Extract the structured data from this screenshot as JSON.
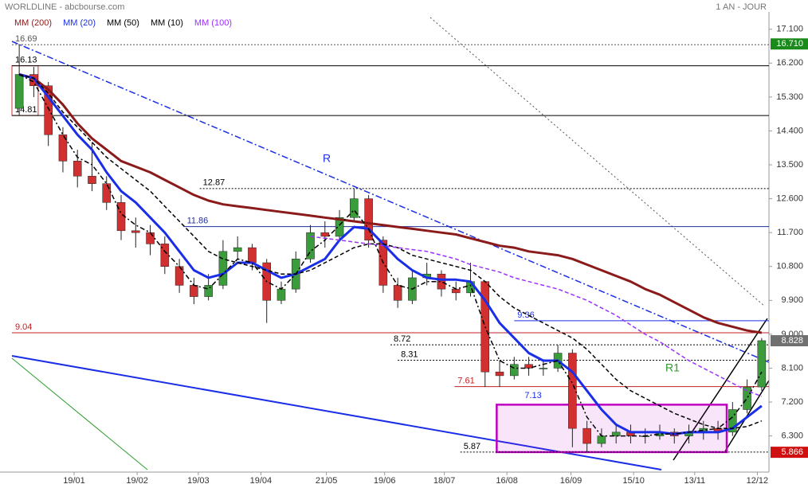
{
  "chart_data": {
    "type": "candlestick",
    "title": "WORLDLINE - abcbourse.com",
    "period": "1 AN - JOUR",
    "up_color": "#3a9c3a",
    "down_color": "#d03030",
    "x": [
      0.5,
      1.5,
      2.5,
      3.5,
      4.5,
      5.5,
      6.5,
      7.5,
      8.5,
      9.5,
      10.5,
      11.5,
      12.5,
      13.5,
      14.5,
      15.5,
      16.5,
      17.5,
      18.5,
      19.5,
      20.5,
      21.5,
      22.5,
      23.5,
      24.5,
      25.5,
      26.5,
      27.5,
      28.5,
      29.5,
      30.5,
      31.5,
      32.5,
      33.5,
      34.5,
      35.5,
      36.5,
      37.5,
      38.5,
      39.5,
      40.5,
      41.5,
      42.5,
      43.5,
      44.5,
      45.5,
      46.5,
      47.5,
      48.5,
      49.5,
      50.5,
      51.5
    ],
    "open": [
      15.0,
      15.9,
      15.6,
      14.3,
      13.6,
      13.2,
      13.0,
      12.5,
      11.75,
      11.7,
      11.4,
      10.8,
      10.3,
      10.0,
      10.3,
      11.2,
      11.3,
      10.9,
      9.9,
      10.2,
      11.0,
      11.7,
      11.6,
      12.1,
      12.6,
      11.5,
      10.3,
      9.9,
      10.5,
      10.6,
      10.2,
      10.1,
      10.4,
      8.0,
      7.9,
      8.2,
      8.1,
      8.1,
      8.5,
      6.5,
      6.1,
      6.3,
      6.4,
      6.3,
      6.3,
      6.4,
      6.3,
      6.4,
      6.5,
      6.4,
      7.0,
      7.6
    ],
    "high": [
      16.69,
      16.1,
      15.7,
      14.5,
      13.9,
      14.1,
      13.2,
      12.7,
      12.1,
      11.9,
      11.6,
      11.0,
      10.5,
      10.6,
      11.5,
      11.6,
      11.4,
      11.0,
      10.4,
      11.2,
      11.9,
      12.0,
      12.3,
      12.87,
      12.7,
      11.6,
      10.5,
      10.7,
      10.9,
      10.7,
      10.4,
      10.9,
      10.4,
      8.3,
      8.4,
      8.4,
      8.3,
      8.72,
      8.6,
      6.7,
      6.5,
      6.6,
      6.6,
      6.5,
      6.6,
      6.5,
      6.6,
      6.7,
      6.7,
      7.2,
      7.8,
      8.9
    ],
    "low": [
      14.81,
      15.3,
      14.0,
      13.3,
      12.9,
      12.8,
      12.3,
      11.5,
      11.3,
      11.1,
      10.6,
      10.1,
      9.8,
      9.9,
      10.2,
      11.0,
      10.7,
      9.3,
      9.8,
      10.1,
      10.9,
      11.3,
      11.5,
      12.0,
      11.3,
      10.1,
      9.7,
      9.8,
      10.3,
      10.0,
      9.9,
      10.0,
      7.6,
      7.6,
      7.8,
      7.9,
      7.9,
      8.0,
      6.0,
      5.87,
      6.0,
      6.1,
      6.1,
      6.1,
      6.2,
      6.1,
      6.1,
      6.2,
      6.2,
      6.3,
      6.9,
      7.5
    ],
    "close": [
      15.9,
      15.6,
      14.3,
      13.6,
      13.2,
      13.0,
      12.5,
      11.75,
      11.7,
      11.4,
      10.8,
      10.3,
      10.0,
      10.3,
      11.2,
      11.3,
      10.9,
      9.9,
      10.2,
      11.0,
      11.7,
      11.6,
      12.1,
      12.6,
      11.5,
      10.3,
      9.9,
      10.5,
      10.6,
      10.2,
      10.1,
      10.4,
      8.0,
      7.9,
      8.2,
      8.1,
      8.1,
      8.5,
      6.5,
      6.1,
      6.3,
      6.4,
      6.3,
      6.3,
      6.4,
      6.3,
      6.4,
      6.5,
      6.4,
      7.0,
      7.6,
      8.83
    ],
    "series": [
      {
        "name": "MM (200)",
        "color": "#8b1a1a",
        "style": "solid",
        "bold": true,
        "values": [
          15.9,
          15.8,
          15.5,
          15.1,
          14.6,
          14.2,
          13.9,
          13.6,
          13.45,
          13.3,
          13.1,
          12.9,
          12.7,
          12.55,
          12.45,
          12.4,
          12.35,
          12.3,
          12.25,
          12.2,
          12.15,
          12.1,
          12.05,
          12.0,
          11.95,
          11.9,
          11.85,
          11.8,
          11.75,
          11.7,
          11.65,
          11.55,
          11.45,
          11.35,
          11.3,
          11.2,
          11.15,
          11.1,
          11.0,
          10.85,
          10.7,
          10.55,
          10.4,
          10.2,
          10.05,
          9.85,
          9.65,
          9.45,
          9.3,
          9.2,
          9.1,
          9.04
        ]
      },
      {
        "name": "MM (20)",
        "color": "#1a2ee8",
        "style": "solid",
        "bold": true,
        "values": [
          15.9,
          15.8,
          15.3,
          14.8,
          14.3,
          13.9,
          13.3,
          12.8,
          12.5,
          12.1,
          11.7,
          11.2,
          10.7,
          10.5,
          10.6,
          10.9,
          10.9,
          10.7,
          10.5,
          10.6,
          10.8,
          11.0,
          11.5,
          11.85,
          11.8,
          11.4,
          11.0,
          10.7,
          10.5,
          10.45,
          10.45,
          10.4,
          9.9,
          9.3,
          8.9,
          8.5,
          8.3,
          8.3,
          8.0,
          7.5,
          7.0,
          6.6,
          6.4,
          6.4,
          6.4,
          6.35,
          6.4,
          6.4,
          6.4,
          6.5,
          6.8,
          7.1
        ]
      },
      {
        "name": "MM (50)",
        "color": "#000000",
        "style": "dashed",
        "bold": false,
        "values": [
          15.9,
          15.8,
          15.4,
          14.9,
          14.5,
          14.1,
          13.7,
          13.4,
          13.1,
          12.8,
          12.4,
          12.0,
          11.6,
          11.2,
          11.0,
          10.9,
          10.8,
          10.7,
          10.6,
          10.6,
          10.7,
          10.9,
          11.1,
          11.3,
          11.4,
          11.4,
          11.3,
          11.1,
          11.0,
          10.9,
          10.8,
          10.7,
          10.4,
          10.0,
          9.7,
          9.5,
          9.3,
          9.1,
          8.9,
          8.6,
          8.2,
          7.8,
          7.5,
          7.3,
          7.1,
          6.9,
          6.75,
          6.6,
          6.5,
          6.5,
          6.55,
          6.7
        ]
      },
      {
        "name": "MM (10)",
        "color": "#000000",
        "style": "dashdot",
        "bold": false,
        "values": [
          15.9,
          15.7,
          15.0,
          14.3,
          13.7,
          13.5,
          13.0,
          12.2,
          11.9,
          11.7,
          11.2,
          10.8,
          10.3,
          10.2,
          10.6,
          11.0,
          10.9,
          10.4,
          10.2,
          10.6,
          11.2,
          11.5,
          11.9,
          12.3,
          11.8,
          10.9,
          10.3,
          10.2,
          10.4,
          10.4,
          10.2,
          10.3,
          9.2,
          8.3,
          8.1,
          8.1,
          8.2,
          8.3,
          7.7,
          6.8,
          6.3,
          6.3,
          6.3,
          6.3,
          6.35,
          6.35,
          6.4,
          6.45,
          6.5,
          6.8,
          7.3,
          8.0
        ]
      },
      {
        "name": "MM (100)",
        "color": "#9b30ff",
        "style": "dashed",
        "bold": false,
        "values": [
          null,
          null,
          null,
          null,
          null,
          null,
          null,
          null,
          null,
          null,
          null,
          null,
          null,
          null,
          null,
          null,
          null,
          null,
          null,
          null,
          11.6,
          11.55,
          11.5,
          11.45,
          11.4,
          11.35,
          11.3,
          11.25,
          11.2,
          11.1,
          11.0,
          10.85,
          10.75,
          10.65,
          10.5,
          10.4,
          10.3,
          10.2,
          10.05,
          9.9,
          9.7,
          9.5,
          9.25,
          9.0,
          8.8,
          8.55,
          8.3,
          8.1,
          7.9,
          7.7,
          7.5,
          7.35
        ]
      }
    ],
    "xlim": [
      0,
      52
    ],
    "xticks": [
      {
        "value": 4.27,
        "label": "19/01"
      },
      {
        "value": 8.6,
        "label": "19/02"
      },
      {
        "value": 12.8,
        "label": "19/03"
      },
      {
        "value": 17.1,
        "label": "19/04"
      },
      {
        "value": 21.6,
        "label": "21/05"
      },
      {
        "value": 25.6,
        "label": "19/06"
      },
      {
        "value": 29.7,
        "label": "18/07"
      },
      {
        "value": 34.0,
        "label": "16/08"
      },
      {
        "value": 38.4,
        "label": "16/09"
      },
      {
        "value": 42.7,
        "label": "15/10"
      },
      {
        "value": 46.9,
        "label": "13/11"
      },
      {
        "value": 51.2,
        "label": "12/12"
      }
    ],
    "ylim": [
      5.34,
      17.56
    ],
    "yticks": [
      {
        "value": 17.1,
        "label": "17.100"
      },
      {
        "value": 16.2,
        "label": "16.200"
      },
      {
        "value": 15.3,
        "label": "15.300"
      },
      {
        "value": 14.4,
        "label": "14.400"
      },
      {
        "value": 13.5,
        "label": "13.500"
      },
      {
        "value": 12.6,
        "label": "12.600"
      },
      {
        "value": 11.7,
        "label": "11.700"
      },
      {
        "value": 10.8,
        "label": "10.800"
      },
      {
        "value": 9.9,
        "label": "9.900"
      },
      {
        "value": 9.0,
        "label": "9.000"
      },
      {
        "value": 8.1,
        "label": "8.100"
      },
      {
        "value": 7.2,
        "label": "7.200"
      },
      {
        "value": 6.3,
        "label": "6.300"
      }
    ],
    "levels": [
      {
        "value": 16.69,
        "from": 0,
        "color": "#555555",
        "style": "dotted"
      },
      {
        "value": 16.13,
        "from": 0,
        "color": "#000000",
        "style": "solid"
      },
      {
        "value": 14.81,
        "from": 0,
        "color": "#000000",
        "style": "solid"
      },
      {
        "value": 12.87,
        "from": 12.9,
        "color": "#000000",
        "style": "dotted"
      },
      {
        "value": 11.86,
        "from": 11.8,
        "color": "#1f2f9f",
        "style": "solid"
      },
      {
        "value": 9.36,
        "from": 34.5,
        "color": "#1a2ee8",
        "style": "solid"
      },
      {
        "value": 9.04,
        "from": 0,
        "color": "#c02020",
        "style": "solid"
      },
      {
        "value": 8.72,
        "from": 26.0,
        "color": "#000000",
        "style": "dotted"
      },
      {
        "value": 8.31,
        "from": 26.5,
        "color": "#000000",
        "style": "dotted"
      },
      {
        "value": 7.61,
        "from": 30.4,
        "color": "#c02020",
        "style": "solid"
      },
      {
        "value": 5.87,
        "from": 30.8,
        "color": "#000000",
        "style": "dotted"
      }
    ],
    "zones": [
      {
        "top": 16.13,
        "bottom": 14.81,
        "from": 0,
        "to": 1.8,
        "color": "#d03030",
        "labeled": false
      },
      {
        "top": 7.13,
        "bottom": 5.87,
        "from": 33.3,
        "to": 49.1,
        "color": "#c000c0",
        "labeled": true
      }
    ],
    "price_tags": [
      {
        "value": 16.71,
        "label": "16.710",
        "color": "#1a8a1a"
      },
      {
        "value": 8.828,
        "label": "8.828",
        "color": "#707070"
      },
      {
        "value": 5.866,
        "label": "5.866",
        "color": "#d01010"
      }
    ],
    "annotations": [
      {
        "text": "R",
        "color": "#1a2ee8"
      },
      {
        "text": "R1",
        "color": "#2a9a2a"
      }
    ]
  }
}
